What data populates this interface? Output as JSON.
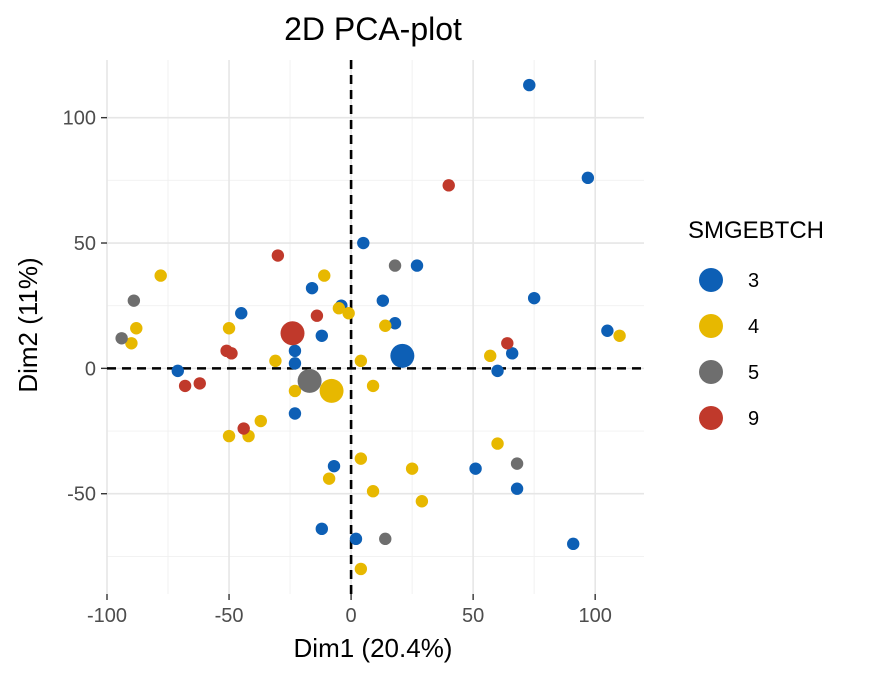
{
  "chart_data": {
    "type": "scatter",
    "title": "2D PCA-plot",
    "xlabel": "Dim1 (20.4%)",
    "ylabel": "Dim2 (11%)",
    "xlim": [
      -100,
      120
    ],
    "ylim": [
      -90,
      123
    ],
    "x_ticks": [
      -100,
      -50,
      0,
      50,
      100
    ],
    "y_ticks": [
      -50,
      0,
      50,
      100
    ],
    "x_tick_labels": [
      "-100",
      "-50",
      "0",
      "50",
      "100"
    ],
    "y_tick_labels": [
      "-50",
      "0",
      "50",
      "100"
    ],
    "grid": true,
    "reference_lines": {
      "x": 0,
      "y": 0,
      "style": "dashed"
    },
    "legend": {
      "title": "SMGEBTCH",
      "position": "right"
    },
    "series": [
      {
        "name": "3",
        "color": "#0d5fb5",
        "points": [
          [
            73,
            113
          ],
          [
            97,
            76
          ],
          [
            5,
            50
          ],
          [
            27,
            41
          ],
          [
            75,
            28
          ],
          [
            -16,
            32
          ],
          [
            -4,
            25
          ],
          [
            13,
            27
          ],
          [
            -45,
            22
          ],
          [
            18,
            18
          ],
          [
            -12,
            13
          ],
          [
            105,
            15
          ],
          [
            -23,
            7
          ],
          [
            -23,
            2
          ],
          [
            66,
            6
          ],
          [
            60,
            -1
          ],
          [
            -71,
            -1
          ],
          [
            -23,
            -18
          ],
          [
            -7,
            -39
          ],
          [
            51,
            -40
          ],
          [
            68,
            -48
          ],
          [
            -12,
            -64
          ],
          [
            2,
            -68
          ],
          [
            91,
            -70
          ]
        ],
        "centroid": [
          21,
          5
        ]
      },
      {
        "name": "4",
        "color": "#e7b800",
        "points": [
          [
            -78,
            37
          ],
          [
            -11,
            37
          ],
          [
            -88,
            16
          ],
          [
            -50,
            16
          ],
          [
            -5,
            24
          ],
          [
            -1,
            22
          ],
          [
            14,
            17
          ],
          [
            -90,
            10
          ],
          [
            110,
            13
          ],
          [
            -31,
            3
          ],
          [
            4,
            3
          ],
          [
            57,
            5
          ],
          [
            -23,
            -9
          ],
          [
            9,
            -7
          ],
          [
            -37,
            -21
          ],
          [
            -42,
            -27
          ],
          [
            -50,
            -27
          ],
          [
            60,
            -30
          ],
          [
            4,
            -36
          ],
          [
            25,
            -40
          ],
          [
            -9,
            -44
          ],
          [
            9,
            -49
          ],
          [
            29,
            -53
          ],
          [
            4,
            -80
          ]
        ],
        "centroid": [
          -8,
          -9
        ]
      },
      {
        "name": "5",
        "color": "#6e6e6e",
        "points": [
          [
            18,
            41
          ],
          [
            -89,
            27
          ],
          [
            -94,
            12
          ],
          [
            68,
            -38
          ],
          [
            14,
            -68
          ]
        ],
        "centroid": [
          -17,
          -5
        ]
      },
      {
        "name": "9",
        "color": "#c0392b",
        "points": [
          [
            40,
            73
          ],
          [
            -30,
            45
          ],
          [
            -14,
            21
          ],
          [
            64,
            10
          ],
          [
            -51,
            7
          ],
          [
            -49,
            6
          ],
          [
            -68,
            -7
          ],
          [
            -62,
            -6
          ],
          [
            -44,
            -24
          ]
        ],
        "centroid": [
          -24,
          14
        ]
      }
    ]
  }
}
